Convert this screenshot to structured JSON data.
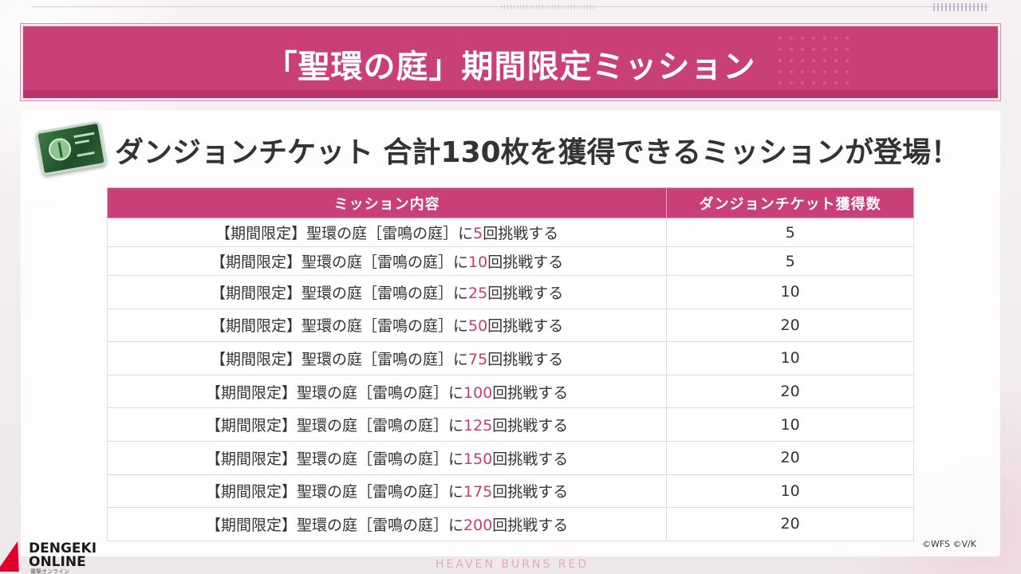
{
  "title": "「聖環の庭」期間限定ミッション",
  "headline": "ダンジョンチケット 合計130枚を獲得できるミッションが登場！",
  "table": {
    "headers": [
      "ミッション内容",
      "ダンジョンチケット獲得数"
    ],
    "rows": [
      {
        "prefix": "【期間限定】聖環の庭［雷鳴の庭］に",
        "n": "5",
        "suffix": "回挑戦する",
        "tickets": "5"
      },
      {
        "prefix": "【期間限定】聖環の庭［雷鳴の庭］に",
        "n": "10",
        "suffix": "回挑戦する",
        "tickets": "5"
      },
      {
        "prefix": "【期間限定】聖環の庭［雷鳴の庭］に",
        "n": "25",
        "suffix": "回挑戦する",
        "tickets": "10"
      },
      {
        "prefix": "【期間限定】聖環の庭［雷鳴の庭］に",
        "n": "50",
        "suffix": "回挑戦する",
        "tickets": "20"
      },
      {
        "prefix": "【期間限定】聖環の庭［雷鳴の庭］に",
        "n": "75",
        "suffix": "回挑戦する",
        "tickets": "10"
      },
      {
        "prefix": "【期間限定】聖環の庭［雷鳴の庭］に",
        "n": "100",
        "suffix": "回挑戦する",
        "tickets": "20"
      },
      {
        "prefix": "【期間限定】聖環の庭［雷鳴の庭］に",
        "n": "125",
        "suffix": "回挑戦する",
        "tickets": "10"
      },
      {
        "prefix": "【期間限定】聖環の庭［雷鳴の庭］に",
        "n": "150",
        "suffix": "回挑戦する",
        "tickets": "20"
      },
      {
        "prefix": "【期間限定】聖環の庭［雷鳴の庭］に",
        "n": "175",
        "suffix": "回挑戦する",
        "tickets": "10"
      },
      {
        "prefix": "【期間限定】聖環の庭［雷鳴の庭］に",
        "n": "200",
        "suffix": "回挑戦する",
        "tickets": "20"
      }
    ]
  },
  "copyright": "©WFS ©V/K",
  "footer_logo": "HEAVEN BURNS RED",
  "watermark": {
    "line1": "DENGEKI",
    "line2": "ONLINE",
    "line3": "電撃オンライン"
  },
  "icons": {
    "ticket": "dungeon-ticket-icon",
    "logo": "dengeki-bolt-icon"
  },
  "colors": {
    "accent": "#c94079",
    "number_highlight": "#c43d75",
    "text": "#333333"
  }
}
